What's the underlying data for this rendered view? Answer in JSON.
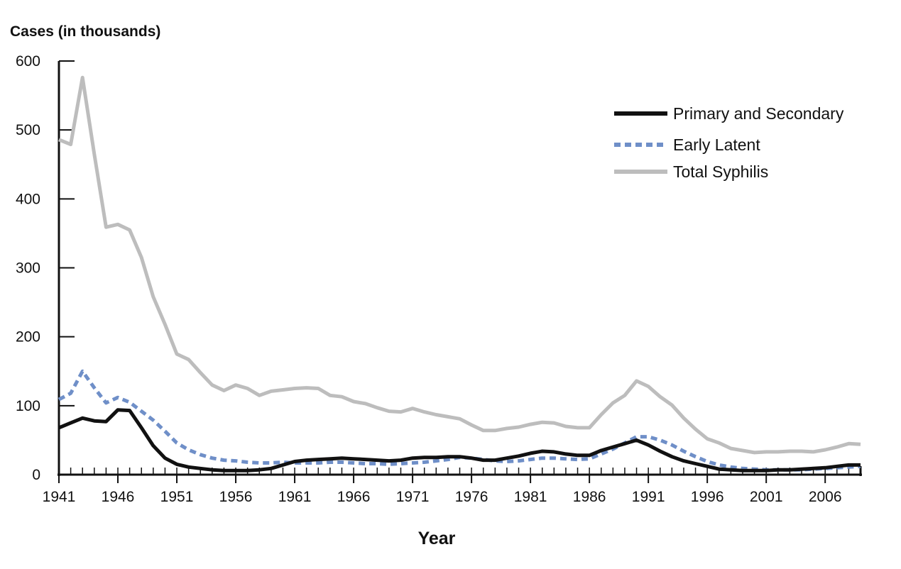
{
  "chart_data": {
    "type": "line",
    "title": "",
    "ylabel": "Cases (in thousands)",
    "xlabel": "Year",
    "xlim": [
      1941,
      2009
    ],
    "ylim": [
      0,
      600
    ],
    "yticks": [
      0,
      100,
      200,
      300,
      400,
      500,
      600
    ],
    "xtick_labels": [
      "1941",
      "1946",
      "1951",
      "1956",
      "1961",
      "1966",
      "1971",
      "1976",
      "1981",
      "1986",
      "1991",
      "1996",
      "2001",
      "2006"
    ],
    "grid": false,
    "legend_position": "top-right",
    "x": [
      1941,
      1942,
      1943,
      1944,
      1945,
      1946,
      1947,
      1948,
      1949,
      1950,
      1951,
      1952,
      1953,
      1954,
      1955,
      1956,
      1957,
      1958,
      1959,
      1960,
      1961,
      1962,
      1963,
      1964,
      1965,
      1966,
      1967,
      1968,
      1969,
      1970,
      1971,
      1972,
      1973,
      1974,
      1975,
      1976,
      1977,
      1978,
      1979,
      1980,
      1981,
      1982,
      1983,
      1984,
      1985,
      1986,
      1987,
      1988,
      1989,
      1990,
      1991,
      1992,
      1993,
      1994,
      1995,
      1996,
      1997,
      1998,
      1999,
      2000,
      2001,
      2002,
      2003,
      2004,
      2005,
      2006,
      2007,
      2008,
      2009
    ],
    "series": [
      {
        "name": "Primary and Secondary",
        "color": "#111111",
        "style": "solid",
        "values": [
          68,
          75,
          82,
          78,
          77,
          94,
          93,
          68,
          42,
          24,
          15,
          11,
          9,
          7,
          6,
          6,
          6,
          7,
          9,
          14,
          19,
          21,
          22,
          23,
          24,
          23,
          22,
          21,
          20,
          21,
          24,
          25,
          25,
          26,
          26,
          24,
          21,
          21,
          24,
          27,
          31,
          34,
          33,
          30,
          28,
          28,
          35,
          40,
          45,
          50,
          43,
          34,
          26,
          20,
          16,
          12,
          8,
          7,
          6,
          6,
          6,
          7,
          7,
          8,
          9,
          10,
          12,
          14,
          14
        ]
      },
      {
        "name": "Early Latent",
        "color": "#6f8fc8",
        "style": "dashed",
        "values": [
          109,
          118,
          150,
          126,
          104,
          112,
          105,
          92,
          79,
          63,
          46,
          36,
          29,
          24,
          21,
          20,
          18,
          17,
          17,
          18,
          17,
          17,
          17,
          18,
          18,
          17,
          16,
          16,
          15,
          16,
          17,
          18,
          20,
          22,
          25,
          24,
          22,
          20,
          19,
          20,
          22,
          24,
          24,
          23,
          22,
          23,
          30,
          37,
          46,
          55,
          55,
          50,
          43,
          34,
          26,
          19,
          14,
          11,
          9,
          8,
          7,
          7,
          7,
          7,
          8,
          9,
          10,
          11,
          12
        ]
      },
      {
        "name": "Total Syphilis",
        "color": "#bdbdbd",
        "style": "solid",
        "values": [
          486,
          479,
          576,
          465,
          359,
          363,
          355,
          315,
          258,
          218,
          175,
          167,
          148,
          130,
          122,
          130,
          125,
          115,
          121,
          123,
          125,
          126,
          125,
          115,
          113,
          106,
          103,
          97,
          92,
          91,
          96,
          91,
          87,
          84,
          81,
          72,
          64,
          64,
          67,
          69,
          73,
          76,
          75,
          70,
          68,
          68,
          87,
          104,
          115,
          136,
          128,
          113,
          101,
          82,
          66,
          52,
          46,
          38,
          35,
          32,
          33,
          33,
          34,
          34,
          33,
          36,
          40,
          45,
          44
        ]
      }
    ]
  }
}
